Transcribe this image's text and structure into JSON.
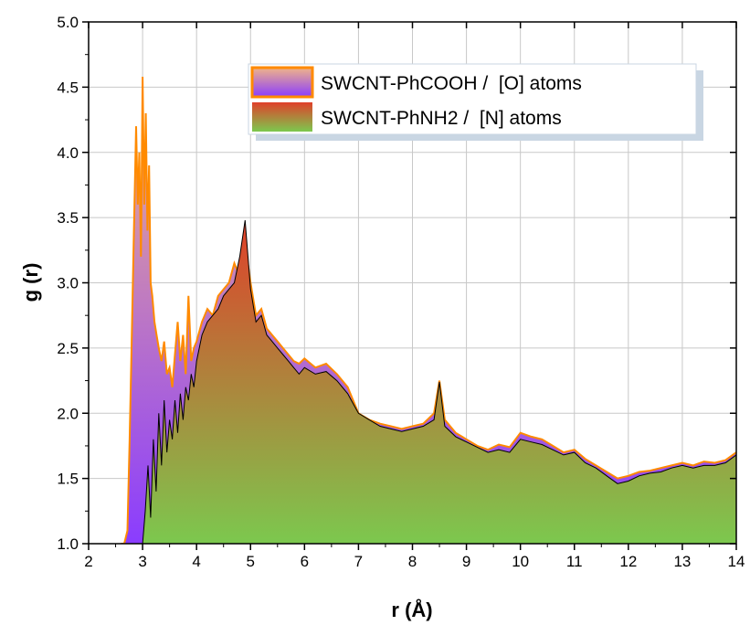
{
  "chart_data": {
    "type": "area",
    "title": "",
    "xlabel": "r (Å)",
    "ylabel": "g (r)",
    "xlim": [
      2,
      14
    ],
    "ylim": [
      1.0,
      5.0
    ],
    "x_ticks": [
      2,
      3,
      4,
      5,
      6,
      7,
      8,
      9,
      10,
      11,
      12,
      13,
      14
    ],
    "x_tick_labels": [
      "2",
      "3",
      "4",
      "5",
      "6",
      "7",
      "8",
      "9",
      "10",
      "11",
      "12",
      "13",
      "14"
    ],
    "y_ticks": [
      1.0,
      1.5,
      2.0,
      2.5,
      3.0,
      3.5,
      4.0,
      4.5,
      5.0
    ],
    "y_tick_labels": [
      "1.0",
      "1.5",
      "2.0",
      "2.5",
      "3.0",
      "3.5",
      "4.0",
      "4.5",
      "5.0"
    ],
    "grid": true,
    "legend_position": "top-right",
    "series": [
      {
        "name": "SWCNT-PhCOOH /  [O] atoms",
        "line_color": "#ff8a00",
        "fill_top": "#f0b488",
        "fill_bottom": "#8a3cff",
        "x": [
          2.6,
          2.66,
          2.72,
          2.76,
          2.8,
          2.84,
          2.88,
          2.91,
          2.94,
          2.97,
          3.0,
          3.03,
          3.06,
          3.09,
          3.12,
          3.15,
          3.18,
          3.22,
          3.26,
          3.3,
          3.35,
          3.4,
          3.45,
          3.5,
          3.55,
          3.6,
          3.65,
          3.7,
          3.75,
          3.8,
          3.85,
          3.9,
          3.95,
          4.0,
          4.1,
          4.2,
          4.3,
          4.4,
          4.5,
          4.6,
          4.7,
          4.8,
          4.9,
          5.0,
          5.1,
          5.2,
          5.3,
          5.4,
          5.5,
          5.6,
          5.7,
          5.8,
          5.9,
          6.0,
          6.2,
          6.4,
          6.6,
          6.8,
          7.0,
          7.2,
          7.4,
          7.6,
          7.8,
          8.0,
          8.2,
          8.4,
          8.5,
          8.6,
          8.8,
          9.0,
          9.2,
          9.4,
          9.6,
          9.8,
          10.0,
          10.2,
          10.4,
          10.6,
          10.8,
          11.0,
          11.2,
          11.4,
          11.6,
          11.8,
          12.0,
          12.2,
          12.4,
          12.6,
          12.8,
          13.0,
          13.2,
          13.4,
          13.6,
          13.8,
          14.0
        ],
        "y": [
          1.0,
          1.0,
          1.1,
          1.8,
          2.6,
          3.4,
          4.2,
          3.6,
          4.0,
          3.2,
          4.58,
          3.6,
          4.3,
          3.4,
          3.9,
          3.0,
          2.9,
          2.7,
          2.6,
          2.5,
          2.4,
          2.55,
          2.3,
          2.35,
          2.2,
          2.45,
          2.7,
          2.4,
          2.6,
          2.3,
          2.9,
          2.4,
          2.5,
          2.55,
          2.7,
          2.8,
          2.75,
          2.9,
          2.95,
          3.0,
          3.15,
          3.05,
          3.3,
          3.0,
          2.75,
          2.8,
          2.65,
          2.6,
          2.55,
          2.5,
          2.45,
          2.4,
          2.38,
          2.42,
          2.35,
          2.38,
          2.3,
          2.2,
          2.0,
          1.95,
          1.92,
          1.9,
          1.88,
          1.9,
          1.92,
          2.0,
          2.25,
          1.95,
          1.85,
          1.8,
          1.75,
          1.72,
          1.76,
          1.74,
          1.85,
          1.82,
          1.8,
          1.75,
          1.7,
          1.72,
          1.65,
          1.6,
          1.55,
          1.5,
          1.52,
          1.55,
          1.56,
          1.58,
          1.6,
          1.62,
          1.6,
          1.63,
          1.62,
          1.64,
          1.7
        ]
      },
      {
        "name": "SWCNT-PhNH2 /  [N] atoms",
        "line_color": "#000000",
        "fill_top": "#e0402a",
        "fill_bottom": "#7cc84e",
        "x": [
          2.9,
          2.95,
          3.0,
          3.05,
          3.1,
          3.15,
          3.2,
          3.25,
          3.3,
          3.35,
          3.4,
          3.45,
          3.5,
          3.55,
          3.6,
          3.65,
          3.7,
          3.75,
          3.8,
          3.85,
          3.9,
          3.95,
          4.0,
          4.1,
          4.2,
          4.3,
          4.4,
          4.5,
          4.6,
          4.7,
          4.8,
          4.9,
          5.0,
          5.1,
          5.2,
          5.3,
          5.4,
          5.5,
          5.6,
          5.7,
          5.8,
          5.9,
          6.0,
          6.2,
          6.4,
          6.6,
          6.8,
          7.0,
          7.2,
          7.4,
          7.6,
          7.8,
          8.0,
          8.2,
          8.4,
          8.5,
          8.6,
          8.8,
          9.0,
          9.2,
          9.4,
          9.6,
          9.8,
          10.0,
          10.2,
          10.4,
          10.6,
          10.8,
          11.0,
          11.2,
          11.4,
          11.6,
          11.8,
          12.0,
          12.2,
          12.4,
          12.6,
          12.8,
          13.0,
          13.2,
          13.4,
          13.6,
          13.8,
          14.0
        ],
        "y": [
          1.0,
          1.0,
          1.0,
          1.25,
          1.6,
          1.2,
          1.8,
          1.4,
          2.0,
          1.6,
          2.1,
          1.7,
          1.95,
          1.8,
          2.1,
          1.85,
          2.15,
          1.95,
          2.2,
          2.1,
          2.3,
          2.2,
          2.4,
          2.6,
          2.7,
          2.75,
          2.8,
          2.9,
          2.95,
          3.0,
          3.2,
          3.48,
          2.95,
          2.7,
          2.75,
          2.6,
          2.55,
          2.5,
          2.45,
          2.4,
          2.35,
          2.3,
          2.35,
          2.3,
          2.32,
          2.25,
          2.15,
          2.0,
          1.95,
          1.9,
          1.88,
          1.86,
          1.88,
          1.9,
          1.95,
          2.24,
          1.9,
          1.82,
          1.78,
          1.74,
          1.7,
          1.72,
          1.7,
          1.8,
          1.78,
          1.76,
          1.72,
          1.68,
          1.7,
          1.62,
          1.58,
          1.52,
          1.46,
          1.48,
          1.52,
          1.54,
          1.55,
          1.58,
          1.6,
          1.58,
          1.6,
          1.6,
          1.62,
          1.68
        ]
      }
    ]
  },
  "colors": {
    "grid": "#c8c8c8",
    "frame": "#000000",
    "legend_shadow": "#c9d6e3"
  }
}
